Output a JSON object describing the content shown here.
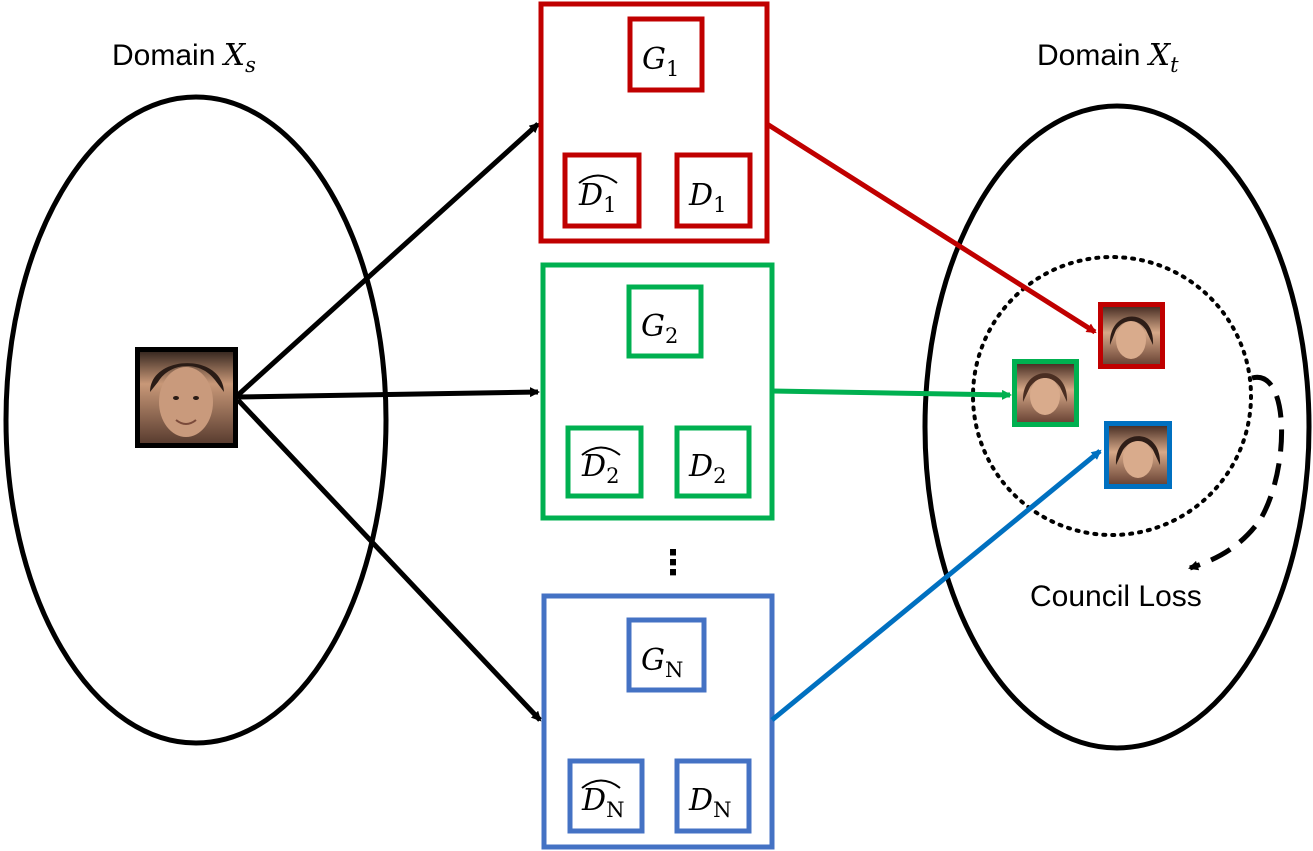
{
  "domains": {
    "source": {
      "label": "Domain ",
      "symbol": "X",
      "subscript": "s"
    },
    "target": {
      "label": "Domain ",
      "symbol": "X",
      "subscript": "t"
    }
  },
  "councils": [
    {
      "color": "#c00000",
      "generator": {
        "symbol": "G",
        "subscript": "1"
      },
      "disc_hat": {
        "symbol": "D",
        "subscript": "1"
      },
      "disc": {
        "symbol": "D",
        "subscript": "1"
      }
    },
    {
      "color": "#00b050",
      "generator": {
        "symbol": "G",
        "subscript": "2"
      },
      "disc_hat": {
        "symbol": "D",
        "subscript": "2"
      },
      "disc": {
        "symbol": "D",
        "subscript": "2"
      }
    },
    {
      "color": "#4472c4",
      "generator": {
        "symbol": "G",
        "subscript": "N"
      },
      "disc_hat": {
        "symbol": "D",
        "subscript": "N"
      },
      "disc": {
        "symbol": "D",
        "subscript": "N"
      }
    }
  ],
  "ellipsis": "⋮",
  "loss_label": "Council Loss",
  "colors": {
    "red": "#c00000",
    "green": "#00b050",
    "blue": "#0070c0",
    "box_blue": "#4472c4"
  }
}
